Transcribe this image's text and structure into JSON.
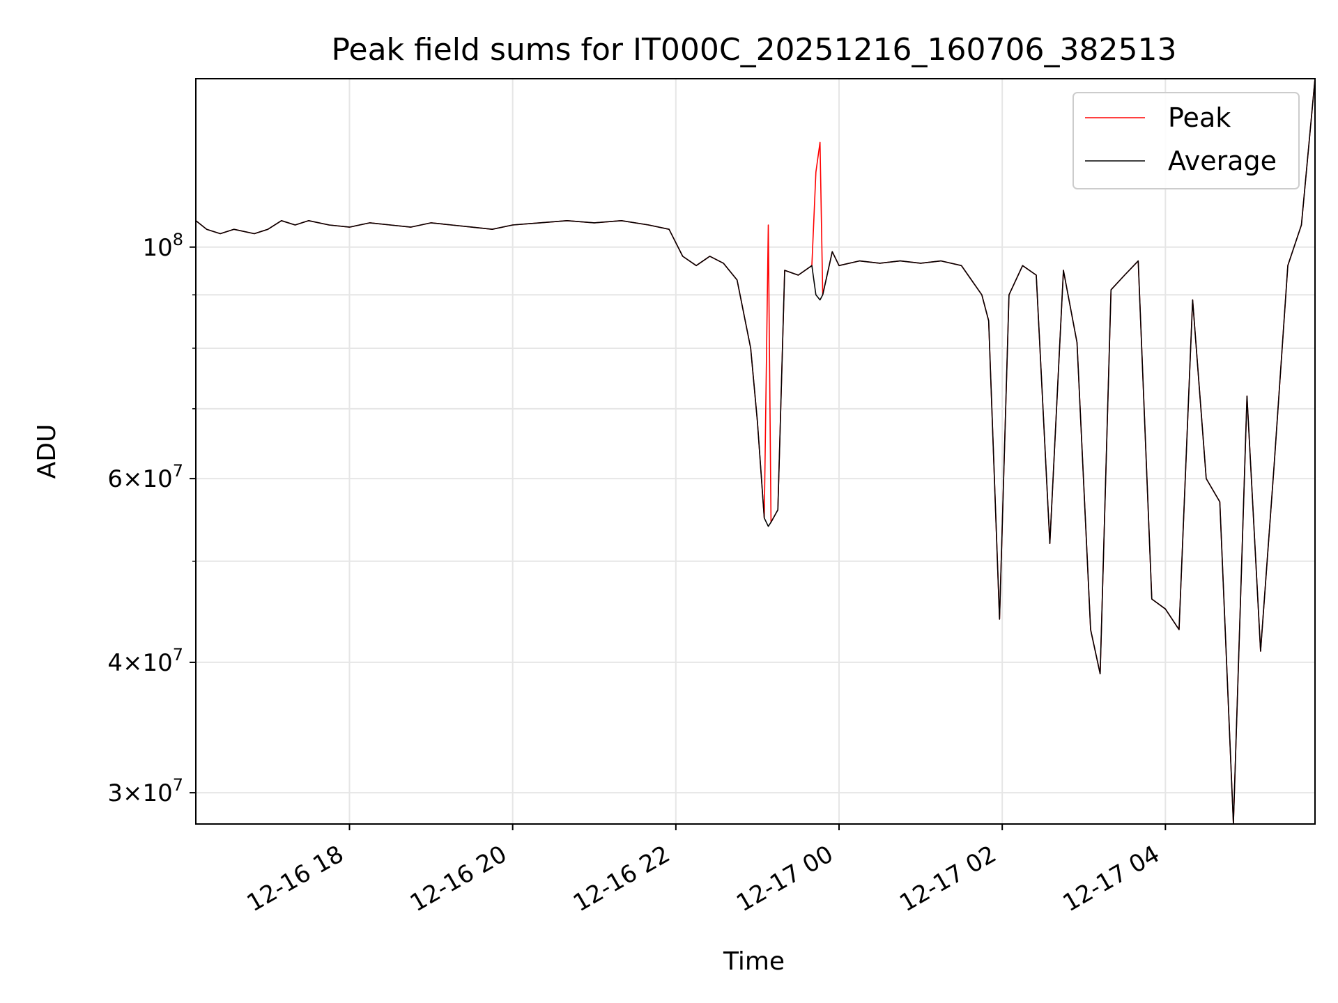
{
  "chart_data": {
    "type": "line",
    "title": "Peak field sums for IT000C_20251216_160706_382513",
    "xlabel": "Time",
    "ylabel": "ADU",
    "xlim": [
      "2025-12-16 16:07",
      "2025-12-17 05:50"
    ],
    "ylim": [
      28000000,
      145000000
    ],
    "yscale": "log",
    "grid": true,
    "legend_position": "top-right",
    "x_ticks": [
      {
        "t": "2025-12-16 18:00",
        "label": "12-16 18"
      },
      {
        "t": "2025-12-16 20:00",
        "label": "12-16 20"
      },
      {
        "t": "2025-12-16 22:00",
        "label": "12-16 22"
      },
      {
        "t": "2025-12-17 00:00",
        "label": "12-17 00"
      },
      {
        "t": "2025-12-17 02:00",
        "label": "12-17 02"
      },
      {
        "t": "2025-12-17 04:00",
        "label": "12-17 04"
      }
    ],
    "y_ticks": [
      {
        "v": 100000000,
        "mant": "",
        "exp": "8"
      },
      {
        "v": 60000000,
        "mant": "6",
        "exp": "7"
      },
      {
        "v": 40000000,
        "mant": "4",
        "exp": "7"
      },
      {
        "v": 30000000,
        "mant": "3",
        "exp": "7"
      }
    ],
    "y_minor": [
      50000000,
      70000000,
      80000000,
      90000000
    ],
    "series": [
      {
        "name": "Peak",
        "color": "#ff0000",
        "points": [
          [
            "2025-12-16 16:07",
            106000000
          ],
          [
            "2025-12-16 16:15",
            104000000
          ],
          [
            "2025-12-16 16:25",
            103000000
          ],
          [
            "2025-12-16 16:35",
            104000000
          ],
          [
            "2025-12-16 16:50",
            103000000
          ],
          [
            "2025-12-16 17:00",
            104000000
          ],
          [
            "2025-12-16 17:10",
            106000000
          ],
          [
            "2025-12-16 17:20",
            105000000
          ],
          [
            "2025-12-16 17:30",
            106000000
          ],
          [
            "2025-12-16 17:45",
            105000000
          ],
          [
            "2025-12-16 18:00",
            104500000
          ],
          [
            "2025-12-16 18:15",
            105500000
          ],
          [
            "2025-12-16 18:30",
            105000000
          ],
          [
            "2025-12-16 18:45",
            104500000
          ],
          [
            "2025-12-16 19:00",
            105500000
          ],
          [
            "2025-12-16 19:15",
            105000000
          ],
          [
            "2025-12-16 19:30",
            104500000
          ],
          [
            "2025-12-16 19:45",
            104000000
          ],
          [
            "2025-12-16 20:00",
            105000000
          ],
          [
            "2025-12-16 20:20",
            105500000
          ],
          [
            "2025-12-16 20:40",
            106000000
          ],
          [
            "2025-12-16 21:00",
            105500000
          ],
          [
            "2025-12-16 21:20",
            106000000
          ],
          [
            "2025-12-16 21:40",
            105000000
          ],
          [
            "2025-12-16 21:55",
            104000000
          ],
          [
            "2025-12-16 22:05",
            98000000
          ],
          [
            "2025-12-16 22:15",
            96000000
          ],
          [
            "2025-12-16 22:25",
            98000000
          ],
          [
            "2025-12-16 22:35",
            96500000
          ],
          [
            "2025-12-16 22:45",
            93000000
          ],
          [
            "2025-12-16 22:55",
            80000000
          ],
          [
            "2025-12-16 23:00",
            68000000
          ],
          [
            "2025-12-16 23:05",
            55000000
          ],
          [
            "2025-12-16 23:08",
            105000000
          ],
          [
            "2025-12-16 23:10",
            54500000
          ],
          [
            "2025-12-16 23:15",
            56000000
          ],
          [
            "2025-12-16 23:20",
            95000000
          ],
          [
            "2025-12-16 23:30",
            94000000
          ],
          [
            "2025-12-16 23:40",
            96000000
          ],
          [
            "2025-12-16 23:43",
            118000000
          ],
          [
            "2025-12-16 23:46",
            126000000
          ],
          [
            "2025-12-16 23:48",
            90000000
          ],
          [
            "2025-12-16 23:55",
            99000000
          ],
          [
            "2025-12-17 00:00",
            96000000
          ],
          [
            "2025-12-17 00:15",
            97000000
          ],
          [
            "2025-12-17 00:30",
            96500000
          ],
          [
            "2025-12-17 00:45",
            97000000
          ],
          [
            "2025-12-17 01:00",
            96500000
          ],
          [
            "2025-12-17 01:15",
            97000000
          ],
          [
            "2025-12-17 01:30",
            96000000
          ],
          [
            "2025-12-17 01:45",
            90000000
          ],
          [
            "2025-12-17 01:50",
            85000000
          ],
          [
            "2025-12-17 01:58",
            44000000
          ],
          [
            "2025-12-17 02:05",
            90000000
          ],
          [
            "2025-12-17 02:15",
            96000000
          ],
          [
            "2025-12-17 02:25",
            94000000
          ],
          [
            "2025-12-17 02:35",
            52000000
          ],
          [
            "2025-12-17 02:45",
            95000000
          ],
          [
            "2025-12-17 02:55",
            81000000
          ],
          [
            "2025-12-17 03:05",
            43000000
          ],
          [
            "2025-12-17 03:12",
            39000000
          ],
          [
            "2025-12-17 03:20",
            91000000
          ],
          [
            "2025-12-17 03:30",
            94000000
          ],
          [
            "2025-12-17 03:40",
            97000000
          ],
          [
            "2025-12-17 03:50",
            46000000
          ],
          [
            "2025-12-17 04:00",
            45000000
          ],
          [
            "2025-12-17 04:10",
            43000000
          ],
          [
            "2025-12-17 04:20",
            89000000
          ],
          [
            "2025-12-17 04:30",
            60000000
          ],
          [
            "2025-12-17 04:40",
            57000000
          ],
          [
            "2025-12-17 04:50",
            28000000
          ],
          [
            "2025-12-17 05:00",
            72000000
          ],
          [
            "2025-12-17 05:10",
            41000000
          ],
          [
            "2025-12-17 05:20",
            62000000
          ],
          [
            "2025-12-17 05:30",
            96000000
          ],
          [
            "2025-12-17 05:40",
            105000000
          ],
          [
            "2025-12-17 05:50",
            145000000
          ]
        ]
      },
      {
        "name": "Average",
        "color": "#000000",
        "points": [
          [
            "2025-12-16 16:07",
            106000000
          ],
          [
            "2025-12-16 16:15",
            104000000
          ],
          [
            "2025-12-16 16:25",
            103000000
          ],
          [
            "2025-12-16 16:35",
            104000000
          ],
          [
            "2025-12-16 16:50",
            103000000
          ],
          [
            "2025-12-16 17:00",
            104000000
          ],
          [
            "2025-12-16 17:10",
            106000000
          ],
          [
            "2025-12-16 17:20",
            105000000
          ],
          [
            "2025-12-16 17:30",
            106000000
          ],
          [
            "2025-12-16 17:45",
            105000000
          ],
          [
            "2025-12-16 18:00",
            104500000
          ],
          [
            "2025-12-16 18:15",
            105500000
          ],
          [
            "2025-12-16 18:30",
            105000000
          ],
          [
            "2025-12-16 18:45",
            104500000
          ],
          [
            "2025-12-16 19:00",
            105500000
          ],
          [
            "2025-12-16 19:15",
            105000000
          ],
          [
            "2025-12-16 19:30",
            104500000
          ],
          [
            "2025-12-16 19:45",
            104000000
          ],
          [
            "2025-12-16 20:00",
            105000000
          ],
          [
            "2025-12-16 20:20",
            105500000
          ],
          [
            "2025-12-16 20:40",
            106000000
          ],
          [
            "2025-12-16 21:00",
            105500000
          ],
          [
            "2025-12-16 21:20",
            106000000
          ],
          [
            "2025-12-16 21:40",
            105000000
          ],
          [
            "2025-12-16 21:55",
            104000000
          ],
          [
            "2025-12-16 22:05",
            98000000
          ],
          [
            "2025-12-16 22:15",
            96000000
          ],
          [
            "2025-12-16 22:25",
            98000000
          ],
          [
            "2025-12-16 22:35",
            96500000
          ],
          [
            "2025-12-16 22:45",
            93000000
          ],
          [
            "2025-12-16 22:55",
            80000000
          ],
          [
            "2025-12-16 23:00",
            68000000
          ],
          [
            "2025-12-16 23:05",
            55000000
          ],
          [
            "2025-12-16 23:08",
            54000000
          ],
          [
            "2025-12-16 23:10",
            54500000
          ],
          [
            "2025-12-16 23:15",
            56000000
          ],
          [
            "2025-12-16 23:20",
            95000000
          ],
          [
            "2025-12-16 23:30",
            94000000
          ],
          [
            "2025-12-16 23:40",
            96000000
          ],
          [
            "2025-12-16 23:43",
            90000000
          ],
          [
            "2025-12-16 23:46",
            89000000
          ],
          [
            "2025-12-16 23:48",
            90000000
          ],
          [
            "2025-12-16 23:55",
            99000000
          ],
          [
            "2025-12-17 00:00",
            96000000
          ],
          [
            "2025-12-17 00:15",
            97000000
          ],
          [
            "2025-12-17 00:30",
            96500000
          ],
          [
            "2025-12-17 00:45",
            97000000
          ],
          [
            "2025-12-17 01:00",
            96500000
          ],
          [
            "2025-12-17 01:15",
            97000000
          ],
          [
            "2025-12-17 01:30",
            96000000
          ],
          [
            "2025-12-17 01:45",
            90000000
          ],
          [
            "2025-12-17 01:50",
            85000000
          ],
          [
            "2025-12-17 01:58",
            44000000
          ],
          [
            "2025-12-17 02:05",
            90000000
          ],
          [
            "2025-12-17 02:15",
            96000000
          ],
          [
            "2025-12-17 02:25",
            94000000
          ],
          [
            "2025-12-17 02:35",
            52000000
          ],
          [
            "2025-12-17 02:45",
            95000000
          ],
          [
            "2025-12-17 02:55",
            81000000
          ],
          [
            "2025-12-17 03:05",
            43000000
          ],
          [
            "2025-12-17 03:12",
            39000000
          ],
          [
            "2025-12-17 03:20",
            91000000
          ],
          [
            "2025-12-17 03:30",
            94000000
          ],
          [
            "2025-12-17 03:40",
            97000000
          ],
          [
            "2025-12-17 03:50",
            46000000
          ],
          [
            "2025-12-17 04:00",
            45000000
          ],
          [
            "2025-12-17 04:10",
            43000000
          ],
          [
            "2025-12-17 04:20",
            89000000
          ],
          [
            "2025-12-17 04:30",
            60000000
          ],
          [
            "2025-12-17 04:40",
            57000000
          ],
          [
            "2025-12-17 04:50",
            28000000
          ],
          [
            "2025-12-17 05:00",
            72000000
          ],
          [
            "2025-12-17 05:10",
            41000000
          ],
          [
            "2025-12-17 05:20",
            62000000
          ],
          [
            "2025-12-17 05:30",
            96000000
          ],
          [
            "2025-12-17 05:40",
            105000000
          ],
          [
            "2025-12-17 05:50",
            145000000
          ]
        ]
      }
    ]
  }
}
